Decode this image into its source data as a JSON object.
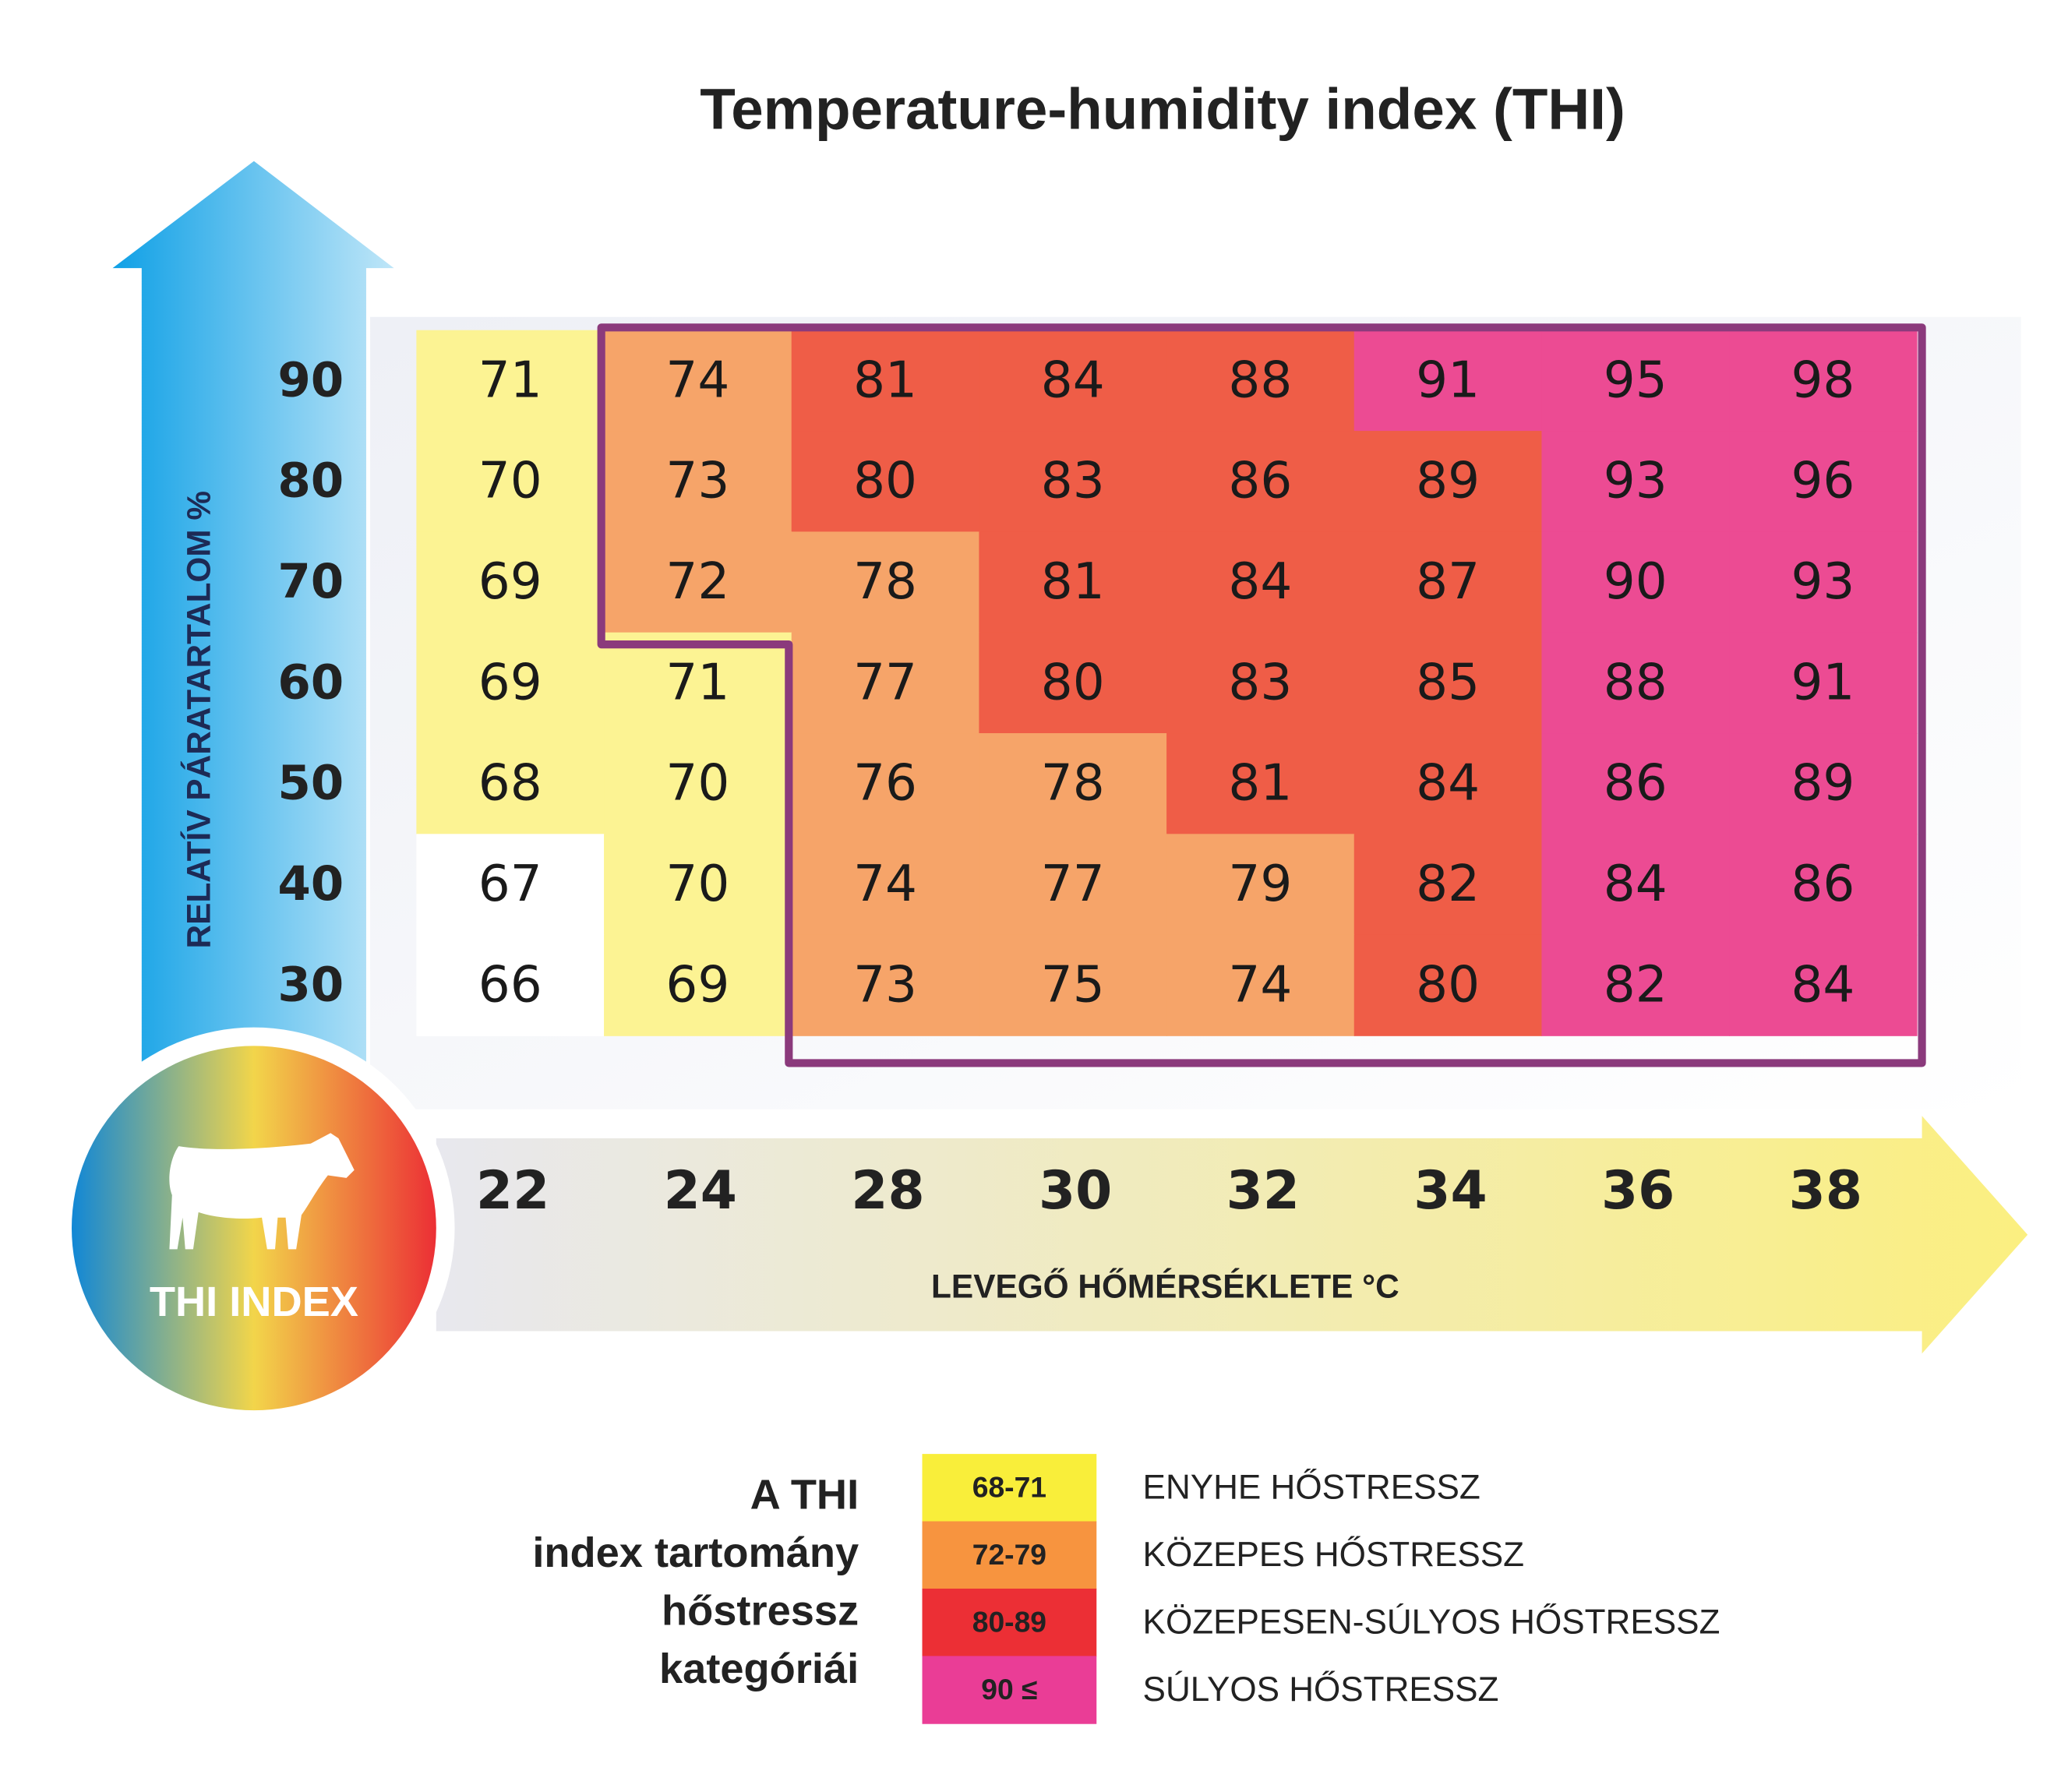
{
  "title": "Temperature-humidity index (THI)",
  "y_axis": {
    "label": "RELATÍV PÁRATARTALOM %",
    "ticks": [
      90,
      80,
      70,
      60,
      50,
      40,
      30
    ]
  },
  "x_axis": {
    "label": "LEVEGŐ HŐMÉRSÉKLETE °C",
    "ticks": [
      22,
      24,
      28,
      30,
      32,
      34,
      36,
      38
    ]
  },
  "table": {
    "rows": [
      [
        71,
        74,
        81,
        84,
        88,
        91,
        95,
        98
      ],
      [
        70,
        73,
        80,
        83,
        86,
        89,
        93,
        96
      ],
      [
        69,
        72,
        78,
        81,
        84,
        87,
        90,
        93
      ],
      [
        69,
        71,
        77,
        80,
        83,
        85,
        88,
        91
      ],
      [
        68,
        70,
        76,
        78,
        81,
        84,
        86,
        89
      ],
      [
        67,
        70,
        74,
        77,
        79,
        82,
        84,
        86
      ],
      [
        66,
        69,
        73,
        75,
        74,
        80,
        82,
        84
      ]
    ],
    "cell_colors": [
      [
        "#fcf393",
        "#f6a469",
        "#ef5d47",
        "#ef5d47",
        "#ef5d47",
        "#ec4b93",
        "#ec4b93",
        "#ec4b93"
      ],
      [
        "#fcf393",
        "#f6a469",
        "#ef5d47",
        "#ef5d47",
        "#ef5d47",
        "#ef5d47",
        "#ec4b93",
        "#ec4b93"
      ],
      [
        "#fcf393",
        "#f6a469",
        "#f6a469",
        "#ef5d47",
        "#ef5d47",
        "#ef5d47",
        "#ec4b93",
        "#ec4b93"
      ],
      [
        "#fcf393",
        "#fcf393",
        "#f6a469",
        "#ef5d47",
        "#ef5d47",
        "#ef5d47",
        "#ec4b93",
        "#ec4b93"
      ],
      [
        "#fcf393",
        "#fcf393",
        "#f6a469",
        "#f6a469",
        "#ef5d47",
        "#ef5d47",
        "#ec4b93",
        "#ec4b93"
      ],
      [
        "#ffffff",
        "#fcf393",
        "#f6a469",
        "#f6a469",
        "#f6a469",
        "#ef5d47",
        "#ec4b93",
        "#ec4b93"
      ],
      [
        "#ffffff",
        "#fcf393",
        "#f6a469",
        "#f6a469",
        "#f6a469",
        "#ef5d47",
        "#ec4b93",
        "#ec4b93"
      ]
    ]
  },
  "badge": "THI INDEX",
  "legend": {
    "title": [
      "A THI",
      "index tartomány",
      "hőstressz",
      "kategóriái"
    ],
    "items": [
      {
        "range": "68-71",
        "color": "#f9ee3a",
        "label": "ENYHE HŐSTRESSZ"
      },
      {
        "range": "72-79",
        "color": "#f7943f",
        "label": "KÖZEPES HŐSTRESSZ"
      },
      {
        "range": "80-89",
        "color": "#ec2f35",
        "label": "KÖZEPESEN-SÚLYOS HŐSTRESSZ"
      },
      {
        "range": "90 ≤",
        "color": "#ea3d96",
        "label": "SÚLYOS HŐSTRESSZ"
      }
    ]
  }
}
